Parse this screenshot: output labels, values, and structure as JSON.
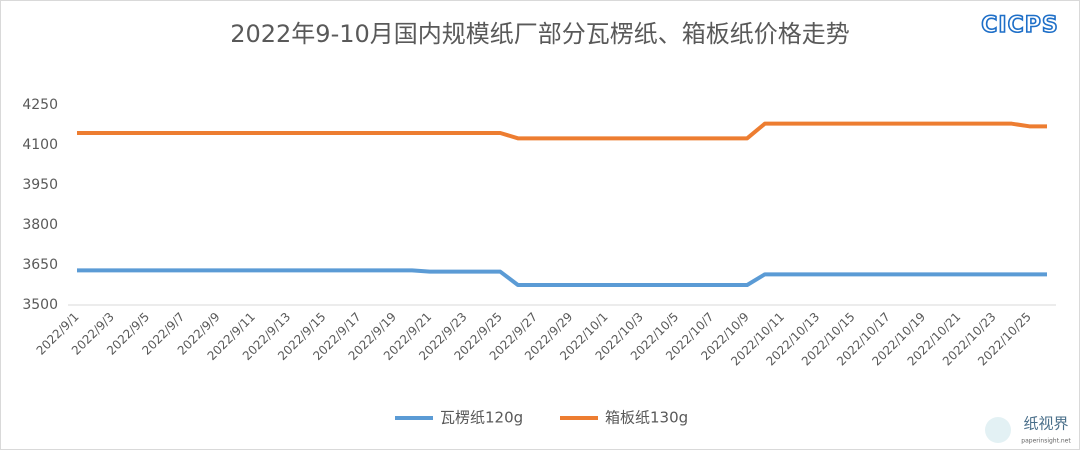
{
  "chart_data": {
    "type": "line",
    "title": "2022年9-10月国内规模纸厂部分瓦楞纸、箱板纸价格走势",
    "logo": "CICPS",
    "watermark": {
      "name": "纸视界",
      "url": "paperinsight.net"
    },
    "categories": [
      "2022/9/1",
      null,
      "2022/9/3",
      null,
      "2022/9/5",
      null,
      "2022/9/7",
      null,
      "2022/9/9",
      null,
      "2022/9/11",
      null,
      "2022/9/13",
      null,
      "2022/9/15",
      null,
      "2022/9/17",
      null,
      "2022/9/19",
      null,
      "2022/9/21",
      null,
      "2022/9/23",
      null,
      "2022/9/25",
      null,
      "2022/9/27",
      null,
      "2022/9/29",
      null,
      "2022/10/1",
      null,
      "2022/10/3",
      null,
      "2022/10/5",
      null,
      "2022/10/7",
      null,
      "2022/10/9",
      null,
      "2022/10/11",
      null,
      "2022/10/13",
      null,
      "2022/10/15",
      null,
      "2022/10/17",
      null,
      "2022/10/19",
      null,
      "2022/10/21",
      null,
      "2022/10/23",
      null,
      "2022/10/25",
      null
    ],
    "series": [
      {
        "name": "瓦楞纸120g",
        "color": "#5b9bd5",
        "values": [
          3630,
          3630,
          3630,
          3630,
          3630,
          3630,
          3630,
          3630,
          3630,
          3630,
          3630,
          3630,
          3630,
          3630,
          3630,
          3630,
          3630,
          3630,
          3630,
          3630,
          3625,
          3625,
          3625,
          3625,
          3625,
          3575,
          3575,
          3575,
          3575,
          3575,
          3575,
          3575,
          3575,
          3575,
          3575,
          3575,
          3575,
          3575,
          3575,
          3615,
          3615,
          3615,
          3615,
          3615,
          3615,
          3615,
          3615,
          3615,
          3615,
          3615,
          3615,
          3615,
          3615,
          3615,
          3615,
          3615
        ]
      },
      {
        "name": "箱板纸130g",
        "color": "#ed7d31",
        "values": [
          4145,
          4145,
          4145,
          4145,
          4145,
          4145,
          4145,
          4145,
          4145,
          4145,
          4145,
          4145,
          4145,
          4145,
          4145,
          4145,
          4145,
          4145,
          4145,
          4145,
          4145,
          4145,
          4145,
          4145,
          4145,
          4125,
          4125,
          4125,
          4125,
          4125,
          4125,
          4125,
          4125,
          4125,
          4125,
          4125,
          4125,
          4125,
          4125,
          4180,
          4180,
          4180,
          4180,
          4180,
          4180,
          4180,
          4180,
          4180,
          4180,
          4180,
          4180,
          4180,
          4180,
          4180,
          4170,
          4170
        ]
      }
    ],
    "ylim": [
      3500,
      4250
    ],
    "yticks": [
      3500,
      3650,
      3800,
      3950,
      4100,
      4250
    ],
    "grid": false,
    "legend": "bottom"
  }
}
